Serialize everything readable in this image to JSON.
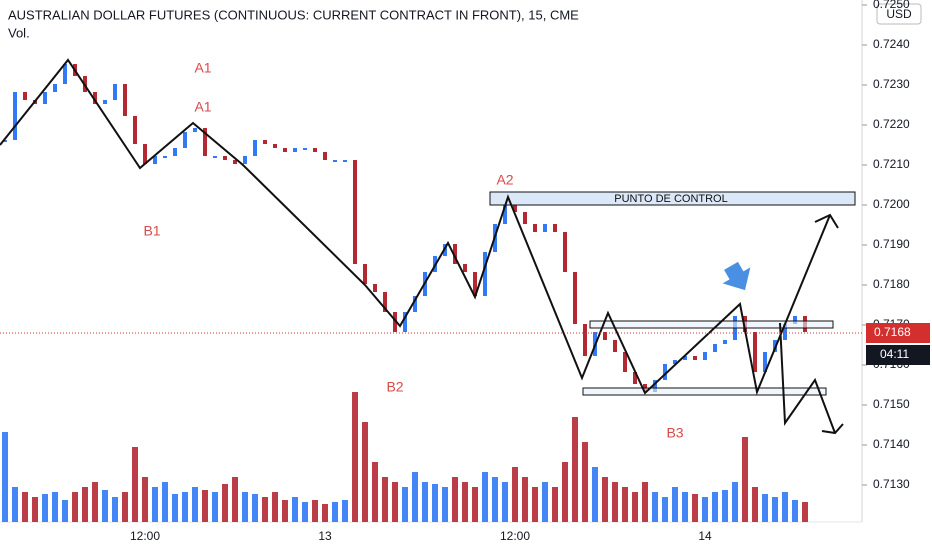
{
  "chart_data": [
    {
      "type": "bar",
      "title": "AUSTRALIAN DOLLAR FUTURES (CONTINUOUS: CURRENT CONTRACT IN FRONT), 15, CME",
      "currency": "USD",
      "last_price": 0.7168,
      "countdown": "04:11",
      "up_color": "#3179f5",
      "down_color": "#b22833",
      "annotations": [
        "A1",
        "A1",
        "B1",
        "A2",
        "B2",
        "B3",
        "PUNTO DE CONTROL"
      ],
      "categories": [
        null,
        null,
        null,
        null,
        null,
        null,
        null,
        null,
        null,
        null,
        null,
        null,
        null,
        null,
        "12:00",
        null,
        null,
        null,
        null,
        null,
        null,
        null,
        null,
        null,
        null,
        null,
        null,
        null,
        null,
        null,
        null,
        null,
        "13",
        null,
        null,
        null,
        null,
        null,
        null,
        null,
        null,
        null,
        null,
        null,
        null,
        null,
        null,
        null,
        null,
        null,
        null,
        "12:00",
        null,
        null,
        null,
        null,
        null,
        null,
        null,
        null,
        null,
        null,
        null,
        null,
        null,
        null,
        null,
        null,
        null,
        null,
        "14",
        null,
        null,
        null,
        null,
        null,
        null,
        null,
        null,
        null,
        null
      ],
      "values": [
        0.7216,
        0.7228,
        0.7226,
        0.7225,
        0.7228,
        0.723,
        0.7235,
        0.7232,
        0.7228,
        0.7225,
        0.7226,
        0.723,
        0.7222,
        0.7215,
        0.721,
        0.7212,
        0.7212,
        0.7214,
        0.7218,
        0.7219,
        0.7212,
        0.7212,
        0.7211,
        0.721,
        0.7212,
        0.7216,
        0.7215,
        0.7214,
        0.7213,
        0.7214,
        0.7214,
        0.7213,
        0.7211,
        0.7211,
        0.7211,
        0.7185,
        0.718,
        0.7178,
        0.7173,
        0.7168,
        0.7173,
        0.7177,
        0.7183,
        0.7187,
        0.719,
        0.7185,
        0.7183,
        0.7177,
        0.7188,
        0.7195,
        0.7202,
        0.7198,
        0.7195,
        0.7193,
        0.7195,
        0.7193,
        0.7183,
        0.717,
        0.7162,
        0.7168,
        0.7166,
        0.7163,
        0.7158,
        0.7155,
        0.7153,
        0.7156,
        0.716,
        0.7161,
        0.7162,
        0.7161,
        0.7163,
        0.7165,
        0.7166,
        0.7172,
        0.7168,
        0.7158,
        0.7163,
        0.7166,
        0.717,
        0.7172,
        0.7168
      ],
      "ylim": [
        0.712,
        0.725
      ],
      "yticks": [
        {
          "value": 0.713,
          "label": "0.7130"
        },
        {
          "value": 0.714,
          "label": "0.7140"
        },
        {
          "value": 0.715,
          "label": "0.7150"
        },
        {
          "value": 0.716,
          "label": "0.7160"
        },
        {
          "value": 0.717,
          "label": "0.7170"
        },
        {
          "value": 0.718,
          "label": "0.7180"
        },
        {
          "value": 0.719,
          "label": "0.7190"
        },
        {
          "value": 0.72,
          "label": "0.7200"
        },
        {
          "value": 0.721,
          "label": "0.7210"
        },
        {
          "value": 0.722,
          "label": "0.7220"
        },
        {
          "value": 0.723,
          "label": "0.7230"
        },
        {
          "value": 0.724,
          "label": "0.7240"
        },
        {
          "value": 0.725,
          "label": "0.7250"
        }
      ],
      "grid": false
    },
    {
      "type": "bar",
      "title": "Vol.",
      "values": [
        90,
        35,
        30,
        25,
        28,
        30,
        22,
        30,
        35,
        40,
        32,
        25,
        30,
        75,
        45,
        35,
        40,
        28,
        30,
        35,
        32,
        30,
        38,
        45,
        30,
        28,
        25,
        30,
        22,
        25,
        20,
        22,
        18,
        20,
        22,
        130,
        100,
        60,
        45,
        40,
        35,
        50,
        40,
        38,
        35,
        45,
        40,
        35,
        50,
        45,
        40,
        55,
        45,
        35,
        40,
        35,
        60,
        105,
        80,
        55,
        45,
        40,
        35,
        30,
        40,
        30,
        25,
        35,
        30,
        28,
        25,
        30,
        32,
        40,
        85,
        35,
        28,
        25,
        30,
        22,
        20
      ],
      "ylim": [
        0,
        160
      ]
    }
  ]
}
